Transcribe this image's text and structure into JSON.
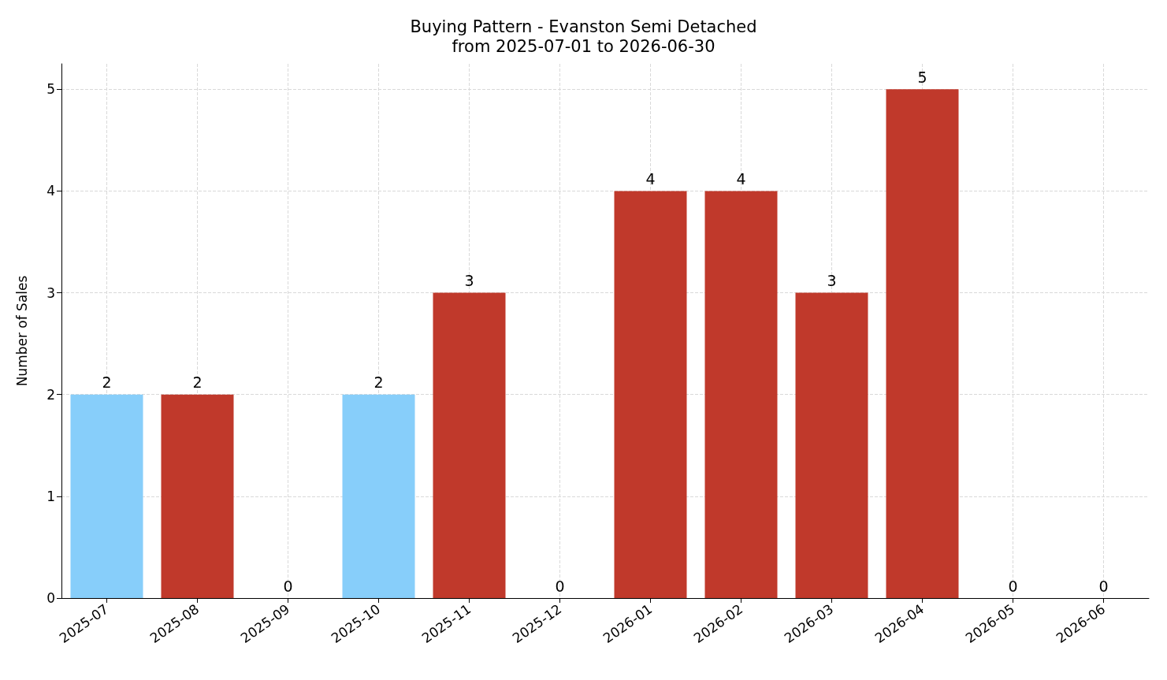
{
  "chart_data": {
    "type": "bar",
    "title": "Buying Pattern - Evanston Semi Detached",
    "subtitle": "from 2025-07-01 to 2026-06-30",
    "ylabel": "Number of Sales",
    "categories": [
      "2025-07",
      "2025-08",
      "2025-09",
      "2025-10",
      "2025-11",
      "2025-12",
      "2026-01",
      "2026-02",
      "2026-03",
      "2026-04",
      "2026-05",
      "2026-06"
    ],
    "values": [
      2,
      2,
      0,
      2,
      3,
      0,
      4,
      4,
      3,
      5,
      0,
      0
    ],
    "colors": [
      "#87cefa",
      "#c0392b",
      "#c0392b",
      "#87cefa",
      "#c0392b",
      "#c0392b",
      "#c0392b",
      "#c0392b",
      "#c0392b",
      "#c0392b",
      "#c0392b",
      "#c0392b"
    ],
    "ylim": [
      0,
      5.25
    ],
    "yticks": [
      0,
      1,
      2,
      3,
      4,
      5
    ],
    "grid": true,
    "data_labels": true
  }
}
